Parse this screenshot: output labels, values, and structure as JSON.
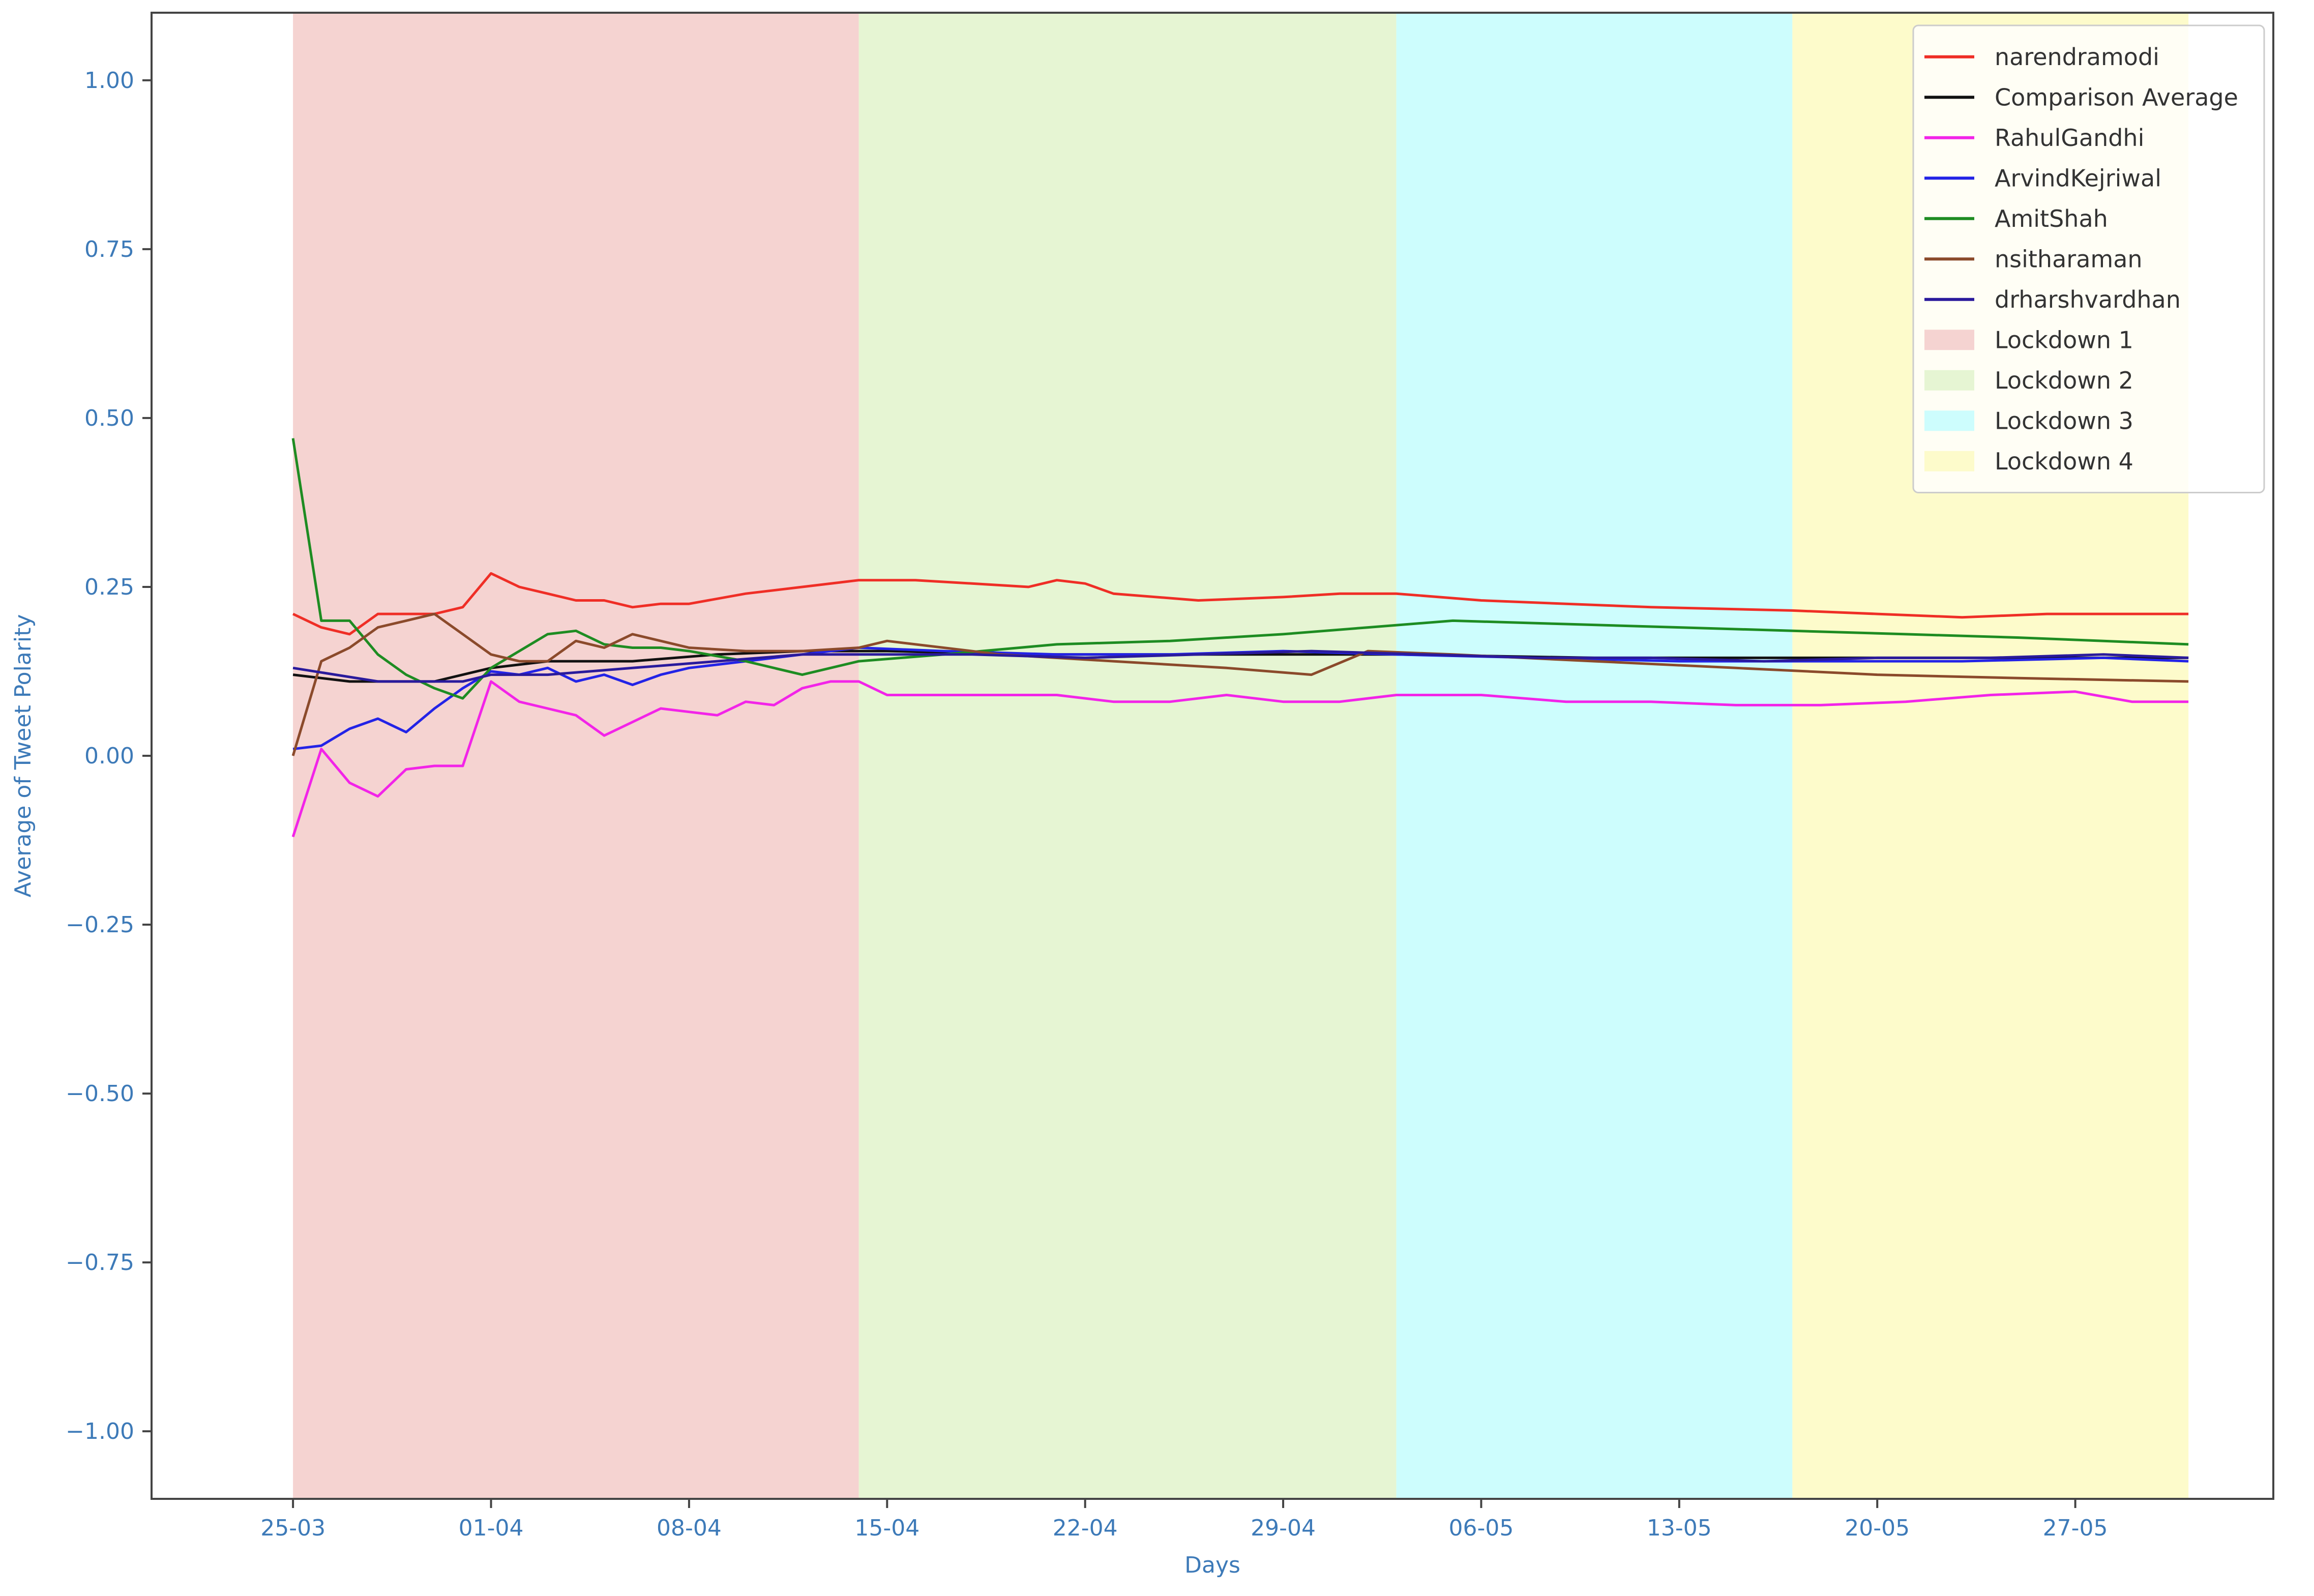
{
  "chart_data": {
    "type": "line",
    "title": "",
    "xlabel": "Days",
    "ylabel": "Average of Tweet Polarity",
    "ylim": [
      -1.1,
      1.1
    ],
    "yticks": [
      -1.0,
      -0.75,
      -0.5,
      -0.25,
      0.0,
      0.25,
      0.5,
      0.75,
      1.0
    ],
    "ytick_labels": [
      "−1.00",
      "−0.75",
      "−0.50",
      "−0.25",
      "0.00",
      "0.25",
      "0.50",
      "0.75",
      "1.00"
    ],
    "x_start_date": "2020-03-25",
    "x_end_date": "2020-05-31",
    "xlim": [
      "2020-03-20",
      "2020-06-03"
    ],
    "xticks": [
      "2020-03-25",
      "2020-04-01",
      "2020-04-08",
      "2020-04-15",
      "2020-04-22",
      "2020-04-29",
      "2020-05-06",
      "2020-05-13",
      "2020-05-20",
      "2020-05-27"
    ],
    "xtick_labels": [
      "25-03",
      "01-04",
      "08-04",
      "15-04",
      "22-04",
      "29-04",
      "06-05",
      "13-05",
      "20-05",
      "27-05"
    ],
    "grid": false,
    "legend_position": "top-right",
    "regions": [
      {
        "name": "Lockdown 1",
        "start": "2020-03-25",
        "end": "2020-04-14",
        "color": "#f5d3d1"
      },
      {
        "name": "Lockdown 2",
        "start": "2020-04-14",
        "end": "2020-05-03",
        "color": "#e6f5d3"
      },
      {
        "name": "Lockdown 3",
        "start": "2020-05-03",
        "end": "2020-05-17",
        "color": "#cdfdfd"
      },
      {
        "name": "Lockdown 4",
        "start": "2020-05-17",
        "end": "2020-05-31",
        "color": "#fdfbcb"
      }
    ],
    "series": [
      {
        "name": "narendramodi",
        "color": "#ef2e26",
        "x": [
          "2020-03-25",
          "2020-03-26",
          "2020-03-27",
          "2020-03-28",
          "2020-03-29",
          "2020-03-30",
          "2020-03-31",
          "2020-04-01",
          "2020-04-02",
          "2020-04-03",
          "2020-04-04",
          "2020-04-05",
          "2020-04-06",
          "2020-04-07",
          "2020-04-08",
          "2020-04-10",
          "2020-04-12",
          "2020-04-14",
          "2020-04-16",
          "2020-04-18",
          "2020-04-20",
          "2020-04-21",
          "2020-04-22",
          "2020-04-23",
          "2020-04-26",
          "2020-04-29",
          "2020-05-01",
          "2020-05-03",
          "2020-05-06",
          "2020-05-09",
          "2020-05-12",
          "2020-05-17",
          "2020-05-20",
          "2020-05-23",
          "2020-05-26",
          "2020-05-29",
          "2020-05-31"
        ],
        "values": [
          0.21,
          0.19,
          0.18,
          0.21,
          0.21,
          0.21,
          0.22,
          0.27,
          0.25,
          0.24,
          0.23,
          0.23,
          0.22,
          0.225,
          0.225,
          0.24,
          0.25,
          0.26,
          0.26,
          0.255,
          0.25,
          0.26,
          0.255,
          0.24,
          0.23,
          0.235,
          0.24,
          0.24,
          0.23,
          0.225,
          0.22,
          0.215,
          0.21,
          0.205,
          0.21,
          0.21,
          0.21
        ]
      },
      {
        "name": "Comparison Average",
        "color": "#111111",
        "x": [
          "2020-03-25",
          "2020-03-27",
          "2020-03-30",
          "2020-04-01",
          "2020-04-03",
          "2020-04-06",
          "2020-04-09",
          "2020-04-12",
          "2020-04-15",
          "2020-04-20",
          "2020-04-26",
          "2020-05-03",
          "2020-05-10",
          "2020-05-17",
          "2020-05-24",
          "2020-05-31"
        ],
        "values": [
          0.12,
          0.11,
          0.11,
          0.13,
          0.14,
          0.14,
          0.15,
          0.155,
          0.155,
          0.15,
          0.15,
          0.15,
          0.145,
          0.145,
          0.145,
          0.145
        ]
      },
      {
        "name": "RahulGandhi",
        "color": "#f224e8",
        "x": [
          "2020-03-25",
          "2020-03-26",
          "2020-03-27",
          "2020-03-28",
          "2020-03-29",
          "2020-03-30",
          "2020-03-31",
          "2020-04-01",
          "2020-04-02",
          "2020-04-03",
          "2020-04-04",
          "2020-04-05",
          "2020-04-06",
          "2020-04-07",
          "2020-04-08",
          "2020-04-09",
          "2020-04-10",
          "2020-04-11",
          "2020-04-12",
          "2020-04-13",
          "2020-04-14",
          "2020-04-15",
          "2020-04-17",
          "2020-04-19",
          "2020-04-21",
          "2020-04-23",
          "2020-04-25",
          "2020-04-27",
          "2020-04-29",
          "2020-05-01",
          "2020-05-03",
          "2020-05-06",
          "2020-05-09",
          "2020-05-12",
          "2020-05-15",
          "2020-05-18",
          "2020-05-21",
          "2020-05-24",
          "2020-05-27",
          "2020-05-29",
          "2020-05-31"
        ],
        "values": [
          -0.12,
          0.01,
          -0.04,
          -0.06,
          -0.02,
          -0.015,
          -0.015,
          0.11,
          0.08,
          0.07,
          0.06,
          0.03,
          0.05,
          0.07,
          0.065,
          0.06,
          0.08,
          0.075,
          0.1,
          0.11,
          0.11,
          0.09,
          0.09,
          0.09,
          0.09,
          0.08,
          0.08,
          0.09,
          0.08,
          0.08,
          0.09,
          0.09,
          0.08,
          0.08,
          0.075,
          0.075,
          0.08,
          0.09,
          0.095,
          0.08,
          0.08
        ]
      },
      {
        "name": "ArvindKejriwal",
        "color": "#2323e6",
        "x": [
          "2020-03-25",
          "2020-03-26",
          "2020-03-27",
          "2020-03-28",
          "2020-03-29",
          "2020-03-30",
          "2020-03-31",
          "2020-04-01",
          "2020-04-02",
          "2020-04-03",
          "2020-04-04",
          "2020-04-05",
          "2020-04-06",
          "2020-04-07",
          "2020-04-08",
          "2020-04-10",
          "2020-04-12",
          "2020-04-14",
          "2020-04-17",
          "2020-04-21",
          "2020-04-25",
          "2020-04-29",
          "2020-05-03",
          "2020-05-08",
          "2020-05-13",
          "2020-05-18",
          "2020-05-23",
          "2020-05-28",
          "2020-05-31"
        ],
        "values": [
          0.01,
          0.015,
          0.04,
          0.055,
          0.035,
          0.07,
          0.1,
          0.125,
          0.12,
          0.13,
          0.11,
          0.12,
          0.105,
          0.12,
          0.13,
          0.14,
          0.15,
          0.16,
          0.155,
          0.15,
          0.15,
          0.155,
          0.15,
          0.145,
          0.14,
          0.14,
          0.14,
          0.145,
          0.14
        ]
      },
      {
        "name": "AmitShah",
        "color": "#1e8c22",
        "x": [
          "2020-03-25",
          "2020-03-26",
          "2020-03-27",
          "2020-03-28",
          "2020-03-29",
          "2020-03-30",
          "2020-03-31",
          "2020-04-01",
          "2020-04-02",
          "2020-04-03",
          "2020-04-04",
          "2020-04-05",
          "2020-04-06",
          "2020-04-07",
          "2020-04-08",
          "2020-04-10",
          "2020-04-12",
          "2020-04-14",
          "2020-04-17",
          "2020-04-21",
          "2020-04-25",
          "2020-04-29",
          "2020-05-02",
          "2020-05-05",
          "2020-05-09",
          "2020-05-13",
          "2020-05-17",
          "2020-05-21",
          "2020-05-25",
          "2020-05-28",
          "2020-05-31"
        ],
        "values": [
          0.47,
          0.2,
          0.2,
          0.15,
          0.12,
          0.1,
          0.085,
          0.13,
          0.155,
          0.18,
          0.185,
          0.165,
          0.16,
          0.16,
          0.155,
          0.14,
          0.12,
          0.14,
          0.15,
          0.165,
          0.17,
          0.18,
          0.19,
          0.2,
          0.195,
          0.19,
          0.185,
          0.18,
          0.175,
          0.17,
          0.165
        ]
      },
      {
        "name": "nsitharaman",
        "color": "#8b4a2b",
        "x": [
          "2020-03-25",
          "2020-03-26",
          "2020-03-27",
          "2020-03-28",
          "2020-03-29",
          "2020-03-30",
          "2020-03-31",
          "2020-04-01",
          "2020-04-02",
          "2020-04-03",
          "2020-04-04",
          "2020-04-05",
          "2020-04-06",
          "2020-04-07",
          "2020-04-08",
          "2020-04-10",
          "2020-04-12",
          "2020-04-14",
          "2020-04-15",
          "2020-04-19",
          "2020-04-23",
          "2020-04-27",
          "2020-04-30",
          "2020-05-02",
          "2020-05-05",
          "2020-05-10",
          "2020-05-15",
          "2020-05-20",
          "2020-05-25",
          "2020-05-31"
        ],
        "values": [
          0.0,
          0.14,
          0.16,
          0.19,
          0.2,
          0.21,
          0.18,
          0.15,
          0.14,
          0.14,
          0.17,
          0.16,
          0.18,
          0.17,
          0.16,
          0.155,
          0.155,
          0.16,
          0.17,
          0.15,
          0.14,
          0.13,
          0.12,
          0.155,
          0.15,
          0.14,
          0.13,
          0.12,
          0.115,
          0.11
        ]
      },
      {
        "name": "drharshvardhan",
        "color": "#2a1a9c",
        "x": [
          "2020-03-25",
          "2020-03-28",
          "2020-03-31",
          "2020-04-01",
          "2020-04-03",
          "2020-04-06",
          "2020-04-09",
          "2020-04-12",
          "2020-04-14",
          "2020-04-18",
          "2020-04-22",
          "2020-04-26",
          "2020-04-30",
          "2020-05-04",
          "2020-05-08",
          "2020-05-12",
          "2020-05-16",
          "2020-05-20",
          "2020-05-24",
          "2020-05-28",
          "2020-05-31"
        ],
        "values": [
          0.13,
          0.11,
          0.11,
          0.12,
          0.12,
          0.13,
          0.14,
          0.15,
          0.15,
          0.15,
          0.145,
          0.15,
          0.155,
          0.15,
          0.145,
          0.145,
          0.14,
          0.145,
          0.145,
          0.15,
          0.145
        ]
      }
    ]
  }
}
